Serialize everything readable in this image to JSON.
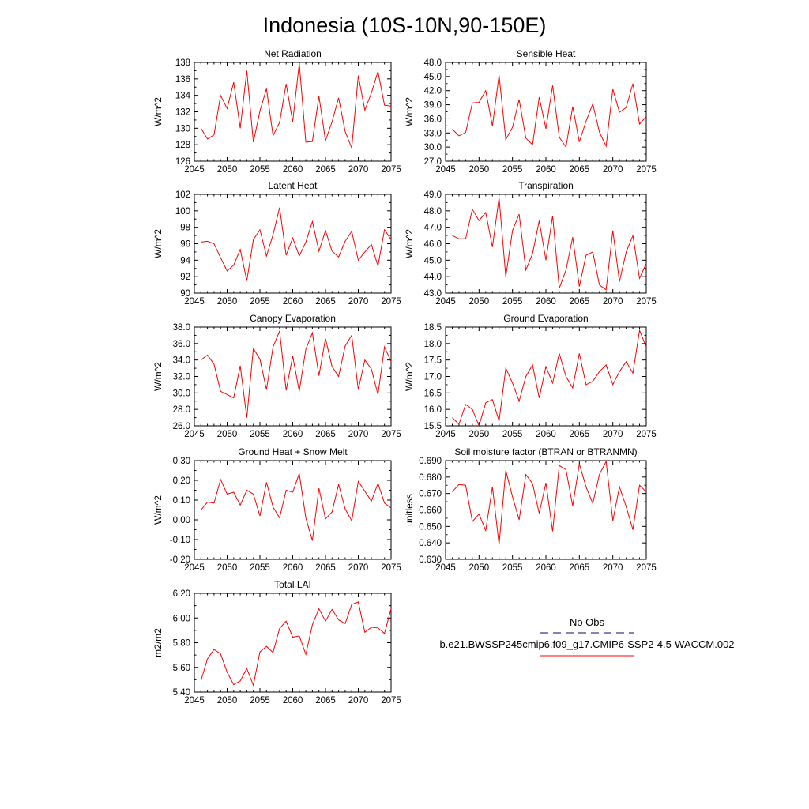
{
  "figure": {
    "title": "Indonesia (10S-10N,90-150E)"
  },
  "legend": {
    "obs_label": "No Obs",
    "case_label": "b.e21.BWSSP245cmip6.f09_g17.CMIP6-SSP2-4.5-WACCM.002",
    "obs_color": "#3a3a8c",
    "case_color": "#ff0000"
  },
  "chart_data": [
    {
      "type": "line",
      "title": "Net Radiation",
      "ylabel": "W/m^2",
      "xlim": [
        2045,
        2075
      ],
      "ylim": [
        126,
        138
      ],
      "xticks": [
        "2045",
        "2050",
        "2055",
        "2060",
        "2065",
        "2070",
        "2075"
      ],
      "yticks": [
        "126",
        "128",
        "130",
        "132",
        "134",
        "136",
        "138"
      ],
      "x": [
        2046,
        2047,
        2048,
        2049,
        2050,
        2051,
        2052,
        2053,
        2054,
        2055,
        2056,
        2057,
        2058,
        2059,
        2060,
        2061,
        2062,
        2063,
        2064,
        2065,
        2066,
        2067,
        2068,
        2069,
        2070,
        2071,
        2072,
        2073,
        2074,
        2075
      ],
      "series": [
        {
          "color": "#ff0000",
          "values": [
            130.0,
            128.7,
            129.2,
            134.0,
            132.4,
            135.6,
            130.0,
            137.0,
            128.3,
            132.1,
            134.8,
            129.1,
            130.7,
            135.4,
            130.8,
            137.9,
            128.3,
            128.4,
            133.9,
            128.5,
            130.8,
            133.7,
            129.6,
            127.6,
            136.4,
            132.2,
            134.3,
            136.9,
            132.8,
            132.7
          ]
        }
      ]
    },
    {
      "type": "line",
      "title": "Sensible Heat",
      "ylabel": "W/m^2",
      "xlim": [
        2045,
        2075
      ],
      "ylim": [
        27,
        48
      ],
      "xticks": [
        "2045",
        "2050",
        "2055",
        "2060",
        "2065",
        "2070",
        "2075"
      ],
      "yticks": [
        "27.0",
        "30.0",
        "33.0",
        "36.0",
        "39.0",
        "42.0",
        "45.0",
        "48.0"
      ],
      "x": [
        2046,
        2047,
        2048,
        2049,
        2050,
        2051,
        2052,
        2053,
        2054,
        2055,
        2056,
        2057,
        2058,
        2059,
        2060,
        2061,
        2062,
        2063,
        2064,
        2065,
        2066,
        2067,
        2068,
        2069,
        2070,
        2071,
        2072,
        2073,
        2074,
        2075
      ],
      "series": [
        {
          "color": "#ff0000",
          "values": [
            33.8,
            32.4,
            33.1,
            39.4,
            39.5,
            42.0,
            34.5,
            45.3,
            31.6,
            34.2,
            40.1,
            31.9,
            30.5,
            40.6,
            33.9,
            43.1,
            32.1,
            30.0,
            38.6,
            31.1,
            35.5,
            39.2,
            33.2,
            30.2,
            42.3,
            37.4,
            38.4,
            43.5,
            34.9,
            36.5
          ]
        }
      ]
    },
    {
      "type": "line",
      "title": "Latent Heat",
      "ylabel": "W/m^2",
      "xlim": [
        2045,
        2075
      ],
      "ylim": [
        90,
        102
      ],
      "xticks": [
        "2045",
        "2050",
        "2055",
        "2060",
        "2065",
        "2070",
        "2075"
      ],
      "yticks": [
        "90",
        "92",
        "94",
        "96",
        "98",
        "100",
        "102"
      ],
      "x": [
        2046,
        2047,
        2048,
        2049,
        2050,
        2051,
        2052,
        2053,
        2054,
        2055,
        2056,
        2057,
        2058,
        2059,
        2060,
        2061,
        2062,
        2063,
        2064,
        2065,
        2066,
        2067,
        2068,
        2069,
        2070,
        2071,
        2072,
        2073,
        2074,
        2075
      ],
      "series": [
        {
          "color": "#ff0000",
          "values": [
            96.2,
            96.3,
            96.0,
            94.3,
            92.7,
            93.4,
            95.3,
            91.5,
            96.5,
            97.7,
            94.5,
            97.1,
            100.4,
            94.6,
            96.7,
            94.5,
            96.2,
            98.7,
            95.1,
            97.6,
            95.1,
            94.4,
            96.3,
            97.5,
            94.0,
            95.0,
            95.9,
            93.3,
            97.7,
            96.5
          ]
        }
      ]
    },
    {
      "type": "line",
      "title": "Transpiration",
      "ylabel": "W/m^2",
      "xlim": [
        2045,
        2075
      ],
      "ylim": [
        43,
        49
      ],
      "xticks": [
        "2045",
        "2050",
        "2055",
        "2060",
        "2065",
        "2070",
        "2075"
      ],
      "yticks": [
        "43.0",
        "44.0",
        "45.0",
        "46.0",
        "47.0",
        "48.0",
        "49.0"
      ],
      "x": [
        2046,
        2047,
        2048,
        2049,
        2050,
        2051,
        2052,
        2053,
        2054,
        2055,
        2056,
        2057,
        2058,
        2059,
        2060,
        2061,
        2062,
        2063,
        2064,
        2065,
        2066,
        2067,
        2068,
        2069,
        2070,
        2071,
        2072,
        2073,
        2074,
        2075
      ],
      "series": [
        {
          "color": "#ff0000",
          "values": [
            46.5,
            46.3,
            46.3,
            48.1,
            47.4,
            47.9,
            45.8,
            48.8,
            44.0,
            46.8,
            47.8,
            44.4,
            45.4,
            47.4,
            45.0,
            47.7,
            43.3,
            44.4,
            46.4,
            43.4,
            45.3,
            45.5,
            43.5,
            43.2,
            46.8,
            43.7,
            45.5,
            46.5,
            43.9,
            44.8
          ]
        }
      ]
    },
    {
      "type": "line",
      "title": "Canopy Evaporation",
      "ylabel": "W/m^2",
      "xlim": [
        2045,
        2075
      ],
      "ylim": [
        26,
        38
      ],
      "xticks": [
        "2045",
        "2050",
        "2055",
        "2060",
        "2065",
        "2070",
        "2075"
      ],
      "yticks": [
        "26.0",
        "28.0",
        "30.0",
        "32.0",
        "34.0",
        "36.0",
        "38.0"
      ],
      "x": [
        2046,
        2047,
        2048,
        2049,
        2050,
        2051,
        2052,
        2053,
        2054,
        2055,
        2056,
        2057,
        2058,
        2059,
        2060,
        2061,
        2062,
        2063,
        2064,
        2065,
        2066,
        2067,
        2068,
        2069,
        2070,
        2071,
        2072,
        2073,
        2074,
        2075
      ],
      "series": [
        {
          "color": "#ff0000",
          "values": [
            34.0,
            34.6,
            33.5,
            30.2,
            29.8,
            29.4,
            33.3,
            27.0,
            35.4,
            34.1,
            30.4,
            35.6,
            37.5,
            30.3,
            34.5,
            30.2,
            35.3,
            37.3,
            32.1,
            36.6,
            33.2,
            32.0,
            35.7,
            37.0,
            30.4,
            34.0,
            32.9,
            29.8,
            35.6,
            33.8
          ]
        }
      ]
    },
    {
      "type": "line",
      "title": "Ground Evaporation",
      "ylabel": "W/m^2",
      "xlim": [
        2045,
        2075
      ],
      "ylim": [
        15.5,
        18.5
      ],
      "xticks": [
        "2045",
        "2050",
        "2055",
        "2060",
        "2065",
        "2070",
        "2075"
      ],
      "yticks": [
        "15.5",
        "16.0",
        "16.5",
        "17.0",
        "17.5",
        "18.0",
        "18.5"
      ],
      "x": [
        2046,
        2047,
        2048,
        2049,
        2050,
        2051,
        2052,
        2053,
        2054,
        2055,
        2056,
        2057,
        2058,
        2059,
        2060,
        2061,
        2062,
        2063,
        2064,
        2065,
        2066,
        2067,
        2068,
        2069,
        2070,
        2071,
        2072,
        2073,
        2074,
        2075
      ],
      "series": [
        {
          "color": "#ff0000",
          "values": [
            15.75,
            15.55,
            16.15,
            16.0,
            15.5,
            16.2,
            16.3,
            15.65,
            17.25,
            16.8,
            16.25,
            17.0,
            17.35,
            16.35,
            17.3,
            16.8,
            17.7,
            17.0,
            16.65,
            17.7,
            16.75,
            16.85,
            17.15,
            17.35,
            16.75,
            17.15,
            17.45,
            17.1,
            18.4,
            17.9
          ]
        }
      ]
    },
    {
      "type": "line",
      "title": "Ground Heat + Snow Melt",
      "ylabel": "W/m^2",
      "xlim": [
        2045,
        2075
      ],
      "ylim": [
        -0.2,
        0.3
      ],
      "xticks": [
        "2045",
        "2050",
        "2055",
        "2060",
        "2065",
        "2070",
        "2075"
      ],
      "yticks": [
        "-0.20",
        "-0.10",
        "0.00",
        "0.10",
        "0.20",
        "0.30"
      ],
      "x": [
        2046,
        2047,
        2048,
        2049,
        2050,
        2051,
        2052,
        2053,
        2054,
        2055,
        2056,
        2057,
        2058,
        2059,
        2060,
        2061,
        2062,
        2063,
        2064,
        2065,
        2066,
        2067,
        2068,
        2069,
        2070,
        2071,
        2072,
        2073,
        2074,
        2075
      ],
      "series": [
        {
          "color": "#ff0000",
          "values": [
            0.05,
            0.09,
            0.085,
            0.205,
            0.13,
            0.14,
            0.075,
            0.15,
            0.13,
            0.02,
            0.19,
            0.065,
            0.01,
            0.15,
            0.14,
            0.235,
            0.01,
            -0.105,
            0.16,
            0.005,
            0.04,
            0.18,
            0.055,
            -0.005,
            0.195,
            0.145,
            0.095,
            0.185,
            0.085,
            0.06
          ]
        }
      ]
    },
    {
      "type": "line",
      "title": "Soil moisture factor (BTRAN or BTRANMN)",
      "ylabel": "unitless",
      "xlim": [
        2045,
        2075
      ],
      "ylim": [
        0.63,
        0.69
      ],
      "xticks": [
        "2045",
        "2050",
        "2055",
        "2060",
        "2065",
        "2070",
        "2075"
      ],
      "yticks": [
        "0.630",
        "0.640",
        "0.650",
        "0.660",
        "0.670",
        "0.680",
        "0.690"
      ],
      "x": [
        2046,
        2047,
        2048,
        2049,
        2050,
        2051,
        2052,
        2053,
        2054,
        2055,
        2056,
        2057,
        2058,
        2059,
        2060,
        2061,
        2062,
        2063,
        2064,
        2065,
        2066,
        2067,
        2068,
        2069,
        2070,
        2071,
        2072,
        2073,
        2074,
        2075
      ],
      "series": [
        {
          "color": "#ff0000",
          "values": [
            0.671,
            0.6755,
            0.675,
            0.653,
            0.6575,
            0.6475,
            0.674,
            0.639,
            0.684,
            0.668,
            0.654,
            0.6815,
            0.676,
            0.658,
            0.6765,
            0.647,
            0.687,
            0.6845,
            0.6625,
            0.688,
            0.674,
            0.664,
            0.6815,
            0.6895,
            0.6535,
            0.674,
            0.662,
            0.648,
            0.675,
            0.671
          ]
        }
      ]
    },
    {
      "type": "line",
      "title": "Total LAI",
      "ylabel": "m2/m2",
      "xlim": [
        2045,
        2075
      ],
      "ylim": [
        5.4,
        6.2
      ],
      "xticks": [
        "2045",
        "2050",
        "2055",
        "2060",
        "2065",
        "2070",
        "2075"
      ],
      "yticks": [
        "5.40",
        "5.60",
        "5.80",
        "6.00",
        "6.20"
      ],
      "x": [
        2046,
        2047,
        2048,
        2049,
        2050,
        2051,
        2052,
        2053,
        2054,
        2055,
        2056,
        2057,
        2058,
        2059,
        2060,
        2061,
        2062,
        2063,
        2064,
        2065,
        2066,
        2067,
        2068,
        2069,
        2070,
        2071,
        2072,
        2073,
        2074,
        2075
      ],
      "series": [
        {
          "color": "#ff0000",
          "values": [
            5.49,
            5.67,
            5.745,
            5.71,
            5.56,
            5.46,
            5.49,
            5.59,
            5.455,
            5.725,
            5.77,
            5.72,
            5.915,
            5.975,
            5.845,
            5.855,
            5.705,
            5.945,
            6.075,
            5.975,
            6.07,
            5.985,
            5.955,
            6.11,
            6.13,
            5.885,
            5.925,
            5.92,
            5.875,
            6.075
          ]
        }
      ]
    }
  ]
}
